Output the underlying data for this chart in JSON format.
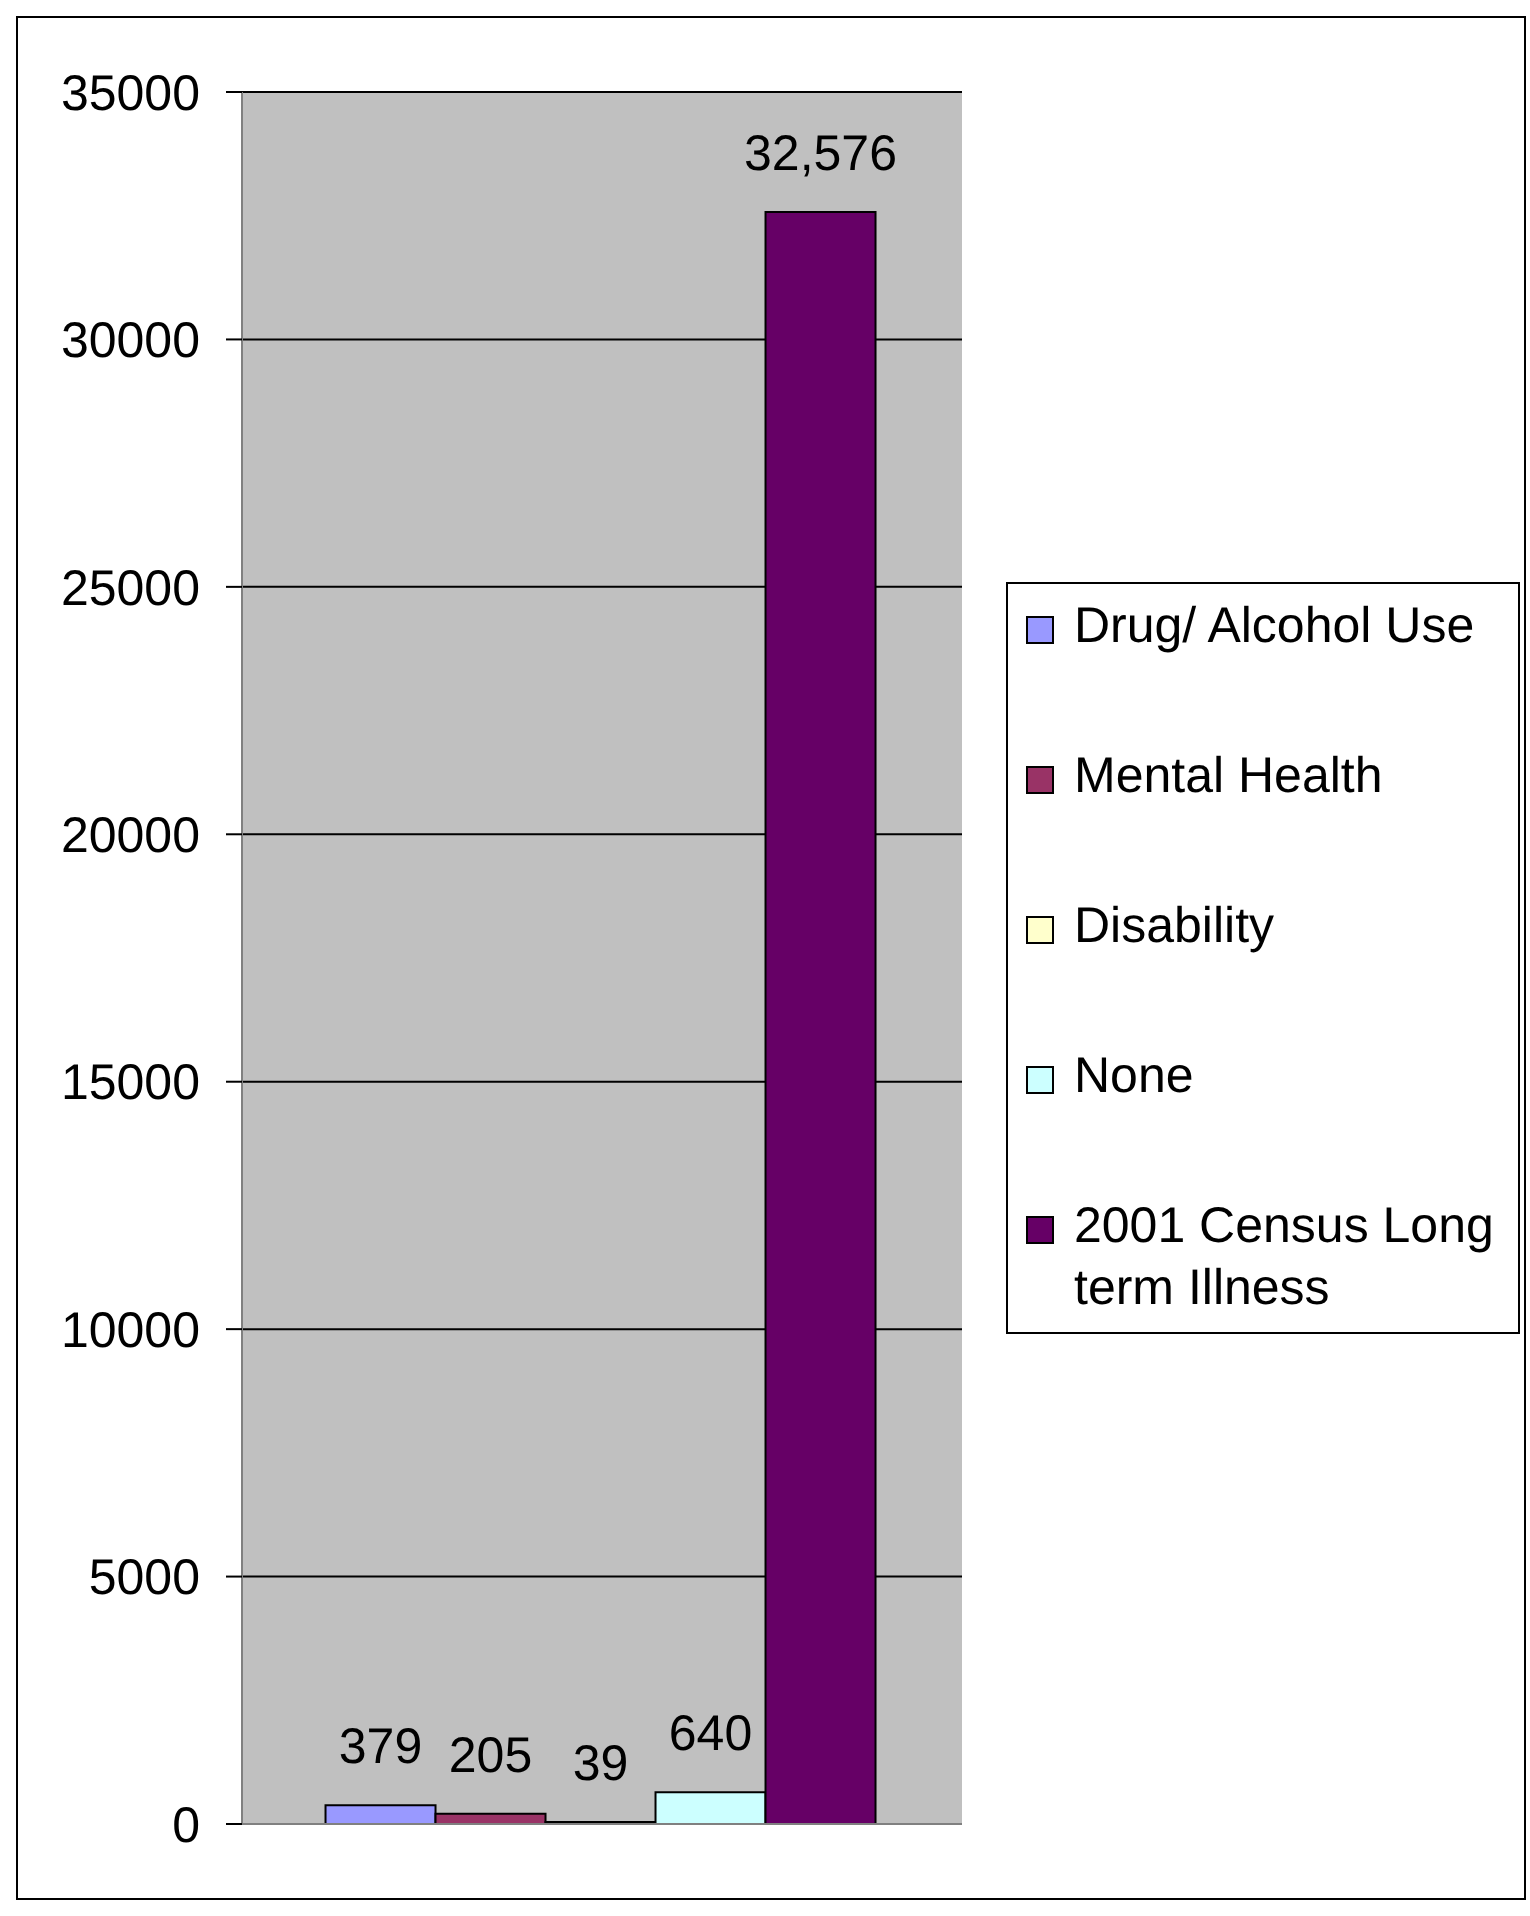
{
  "chart_data": {
    "type": "bar",
    "categories": [
      null
    ],
    "series": [
      {
        "name": "Drug/ Alcohol Use",
        "color": "#9999ff",
        "values": [
          379
        ],
        "value_labels": [
          "379"
        ]
      },
      {
        "name": "Mental Health",
        "color": "#993366",
        "values": [
          205
        ],
        "value_labels": [
          "205"
        ]
      },
      {
        "name": "Disability",
        "color": "#ffffcc",
        "values": [
          39
        ],
        "value_labels": [
          "39"
        ]
      },
      {
        "name": "None",
        "color": "#ccffff",
        "values": [
          640
        ],
        "value_labels": [
          "640"
        ]
      },
      {
        "name": "2001 Census Long term Illness",
        "color": "#660066",
        "values": [
          32576
        ],
        "value_labels": [
          "32,576"
        ]
      }
    ],
    "ylim": [
      0,
      35000
    ],
    "yticks": [
      0,
      5000,
      10000,
      15000,
      20000,
      25000,
      30000,
      35000
    ],
    "grid": "y",
    "legend": "right"
  }
}
